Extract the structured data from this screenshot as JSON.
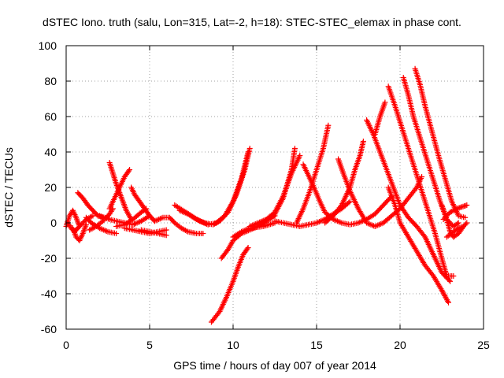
{
  "chart_data": {
    "type": "scatter",
    "title": "dSTEC Iono. truth (salu, Lon=315, Lat=-2, h=18): STEC-STEC_elemax in phase cont.",
    "xlabel": "GPS time / hours of day 007 of year 2014",
    "ylabel": "dSTEC  / TECUs",
    "xlim": [
      0,
      25
    ],
    "ylim": [
      -60,
      100
    ],
    "xticks": [
      0,
      5,
      10,
      15,
      20,
      25
    ],
    "yticks": [
      -60,
      -40,
      -20,
      0,
      20,
      40,
      60,
      80,
      100
    ],
    "grid": true,
    "marker": "+",
    "color": "#ff0000",
    "tracks": [
      [
        [
          0.0,
          -2
        ],
        [
          0.2,
          4
        ],
        [
          0.4,
          7
        ],
        [
          0.6,
          3
        ],
        [
          0.8,
          -2
        ]
      ],
      [
        [
          0.4,
          -3
        ],
        [
          0.6,
          -8
        ],
        [
          0.8,
          -10
        ],
        [
          1.0,
          -6
        ],
        [
          1.2,
          -1
        ]
      ],
      [
        [
          0.1,
          0
        ],
        [
          0.3,
          -3
        ],
        [
          0.5,
          -5
        ],
        [
          0.8,
          -2
        ],
        [
          1.2,
          2
        ],
        [
          1.6,
          4
        ]
      ],
      [
        [
          0.7,
          17
        ],
        [
          1.0,
          14
        ],
        [
          1.3,
          10
        ],
        [
          1.6,
          7
        ],
        [
          1.9,
          4
        ],
        [
          2.2,
          3
        ]
      ],
      [
        [
          1.2,
          3
        ],
        [
          1.5,
          0
        ],
        [
          2.0,
          -3
        ],
        [
          2.5,
          -5
        ],
        [
          3.0,
          -6
        ]
      ],
      [
        [
          1.4,
          -4
        ],
        [
          1.8,
          -2
        ],
        [
          2.2,
          1
        ],
        [
          2.6,
          5
        ],
        [
          2.8,
          8
        ]
      ],
      [
        [
          2.6,
          34
        ],
        [
          2.8,
          28
        ],
        [
          3.0,
          22
        ],
        [
          3.2,
          17
        ],
        [
          3.4,
          12
        ],
        [
          3.6,
          7
        ],
        [
          3.9,
          2
        ]
      ],
      [
        [
          2.6,
          8
        ],
        [
          2.9,
          14
        ],
        [
          3.2,
          20
        ],
        [
          3.5,
          26
        ],
        [
          3.8,
          30
        ]
      ],
      [
        [
          2.0,
          4
        ],
        [
          2.6,
          2
        ],
        [
          3.0,
          1
        ],
        [
          3.5,
          0
        ],
        [
          4.0,
          -1
        ],
        [
          4.5,
          1
        ],
        [
          5.0,
          4
        ]
      ],
      [
        [
          3.0,
          -2
        ],
        [
          3.5,
          -1
        ],
        [
          4.0,
          2
        ],
        [
          4.5,
          6
        ],
        [
          4.8,
          8
        ]
      ],
      [
        [
          3.5,
          -3
        ],
        [
          4.0,
          -4
        ],
        [
          4.5,
          -5
        ],
        [
          5.0,
          -6
        ],
        [
          5.5,
          -5
        ],
        [
          6.0,
          -4
        ]
      ],
      [
        [
          3.9,
          20
        ],
        [
          4.1,
          16
        ],
        [
          4.4,
          12
        ],
        [
          4.7,
          8
        ],
        [
          5.0,
          4
        ],
        [
          5.3,
          1
        ]
      ],
      [
        [
          5.3,
          1
        ],
        [
          5.8,
          3
        ],
        [
          6.2,
          3
        ],
        [
          6.5,
          0
        ],
        [
          6.9,
          -3
        ],
        [
          7.3,
          -5
        ],
        [
          7.8,
          -6
        ],
        [
          8.2,
          -6
        ]
      ],
      [
        [
          4.5,
          -4
        ],
        [
          5.0,
          -5
        ],
        [
          5.5,
          -6
        ],
        [
          6.0,
          -7
        ]
      ],
      [
        [
          6.5,
          10
        ],
        [
          7.0,
          7
        ],
        [
          7.5,
          4
        ],
        [
          8.0,
          1
        ],
        [
          8.5,
          -1
        ],
        [
          9.0,
          0
        ],
        [
          9.5,
          4
        ],
        [
          10.0,
          12
        ],
        [
          10.5,
          25
        ],
        [
          10.9,
          40
        ]
      ],
      [
        [
          6.8,
          7
        ],
        [
          7.3,
          5
        ],
        [
          7.8,
          2
        ],
        [
          8.3,
          0
        ],
        [
          8.8,
          -1
        ],
        [
          9.2,
          1
        ],
        [
          9.7,
          6
        ],
        [
          10.2,
          16
        ],
        [
          10.7,
          30
        ],
        [
          11.0,
          42
        ]
      ],
      [
        [
          8.7,
          -56
        ],
        [
          9.2,
          -50
        ],
        [
          9.6,
          -42
        ],
        [
          10.0,
          -33
        ],
        [
          10.3,
          -25
        ],
        [
          10.6,
          -18
        ],
        [
          10.9,
          -14
        ]
      ],
      [
        [
          9.3,
          -20
        ],
        [
          9.7,
          -15
        ],
        [
          10.0,
          -10
        ],
        [
          10.5,
          -6
        ],
        [
          11.0,
          -4
        ],
        [
          11.5,
          -2
        ],
        [
          12.0,
          1
        ],
        [
          12.5,
          4
        ]
      ],
      [
        [
          10.0,
          -8
        ],
        [
          10.5,
          -5
        ],
        [
          11.0,
          -3
        ],
        [
          11.8,
          -2
        ],
        [
          12.5,
          0
        ]
      ],
      [
        [
          11.0,
          -2
        ],
        [
          11.5,
          0
        ],
        [
          12.0,
          2
        ],
        [
          12.5,
          5
        ],
        [
          13.0,
          14
        ],
        [
          13.5,
          30
        ],
        [
          13.7,
          42
        ]
      ],
      [
        [
          11.5,
          -1
        ],
        [
          12.0,
          2
        ],
        [
          12.5,
          6
        ],
        [
          13.0,
          15
        ],
        [
          13.5,
          28
        ],
        [
          14.0,
          38
        ]
      ],
      [
        [
          12.5,
          1
        ],
        [
          13.0,
          0
        ],
        [
          13.5,
          -1
        ],
        [
          14.0,
          -2
        ],
        [
          14.5,
          -1
        ],
        [
          15.0,
          0
        ],
        [
          15.5,
          2
        ],
        [
          16.0,
          5
        ],
        [
          16.5,
          8
        ],
        [
          17.0,
          12
        ]
      ],
      [
        [
          13.8,
          0
        ],
        [
          14.2,
          8
        ],
        [
          14.6,
          18
        ],
        [
          15.0,
          30
        ],
        [
          15.4,
          42
        ],
        [
          15.7,
          55
        ]
      ],
      [
        [
          14.2,
          33
        ],
        [
          14.5,
          27
        ],
        [
          14.8,
          21
        ],
        [
          15.2,
          12
        ],
        [
          15.5,
          6
        ],
        [
          16.0,
          2
        ],
        [
          16.5,
          0
        ],
        [
          17.0,
          -1
        ],
        [
          17.5,
          0
        ],
        [
          18.0,
          2
        ],
        [
          18.5,
          5
        ],
        [
          19.0,
          10
        ],
        [
          19.5,
          15
        ]
      ],
      [
        [
          15.5,
          0
        ],
        [
          16.0,
          4
        ],
        [
          16.5,
          10
        ],
        [
          17.0,
          20
        ],
        [
          17.3,
          30
        ],
        [
          17.6,
          38
        ],
        [
          17.8,
          46
        ]
      ],
      [
        [
          16.3,
          36
        ],
        [
          16.6,
          28
        ],
        [
          17.0,
          18
        ],
        [
          17.5,
          8
        ],
        [
          18.0,
          0
        ],
        [
          18.5,
          -2
        ],
        [
          19.0,
          0
        ],
        [
          19.5,
          4
        ],
        [
          20.0,
          8
        ],
        [
          20.5,
          14
        ],
        [
          21.0,
          20
        ],
        [
          21.3,
          26
        ]
      ],
      [
        [
          18.0,
          58
        ],
        [
          18.4,
          50
        ],
        [
          18.8,
          40
        ],
        [
          19.2,
          30
        ],
        [
          19.6,
          20
        ],
        [
          20.0,
          10
        ],
        [
          20.5,
          3
        ],
        [
          21.0,
          -2
        ],
        [
          21.5,
          -8
        ],
        [
          22.0,
          -18
        ],
        [
          22.5,
          -28
        ],
        [
          23.0,
          -33
        ]
      ],
      [
        [
          18.5,
          50
        ],
        [
          18.8,
          60
        ],
        [
          19.1,
          68
        ]
      ],
      [
        [
          19.3,
          77
        ],
        [
          19.7,
          66
        ],
        [
          20.1,
          54
        ],
        [
          20.5,
          42
        ],
        [
          20.9,
          30
        ],
        [
          21.3,
          18
        ],
        [
          21.7,
          6
        ],
        [
          22.1,
          -6
        ],
        [
          22.5,
          -20
        ],
        [
          22.8,
          -30
        ],
        [
          23.2,
          -30
        ]
      ],
      [
        [
          20.2,
          82
        ],
        [
          20.5,
          72
        ],
        [
          20.8,
          60
        ],
        [
          21.2,
          48
        ],
        [
          21.6,
          36
        ],
        [
          22.0,
          24
        ],
        [
          22.4,
          12
        ],
        [
          22.8,
          2
        ],
        [
          23.2,
          -2
        ],
        [
          23.5,
          0
        ]
      ],
      [
        [
          20.9,
          87
        ],
        [
          21.2,
          78
        ],
        [
          21.5,
          66
        ],
        [
          21.9,
          52
        ],
        [
          22.3,
          38
        ],
        [
          22.7,
          25
        ],
        [
          23.1,
          12
        ],
        [
          23.5,
          4
        ],
        [
          23.9,
          3
        ]
      ],
      [
        [
          19.3,
          20
        ],
        [
          19.7,
          10
        ],
        [
          20.0,
          0
        ],
        [
          20.5,
          -8
        ],
        [
          21.0,
          -16
        ],
        [
          21.5,
          -24
        ],
        [
          22.0,
          -30
        ],
        [
          22.5,
          -38
        ],
        [
          22.9,
          -45
        ]
      ],
      [
        [
          22.5,
          10
        ],
        [
          22.8,
          2
        ],
        [
          23.0,
          -5
        ],
        [
          23.2,
          -8
        ],
        [
          23.5,
          -6
        ],
        [
          23.8,
          -2
        ],
        [
          24.0,
          0
        ]
      ],
      [
        [
          22.6,
          2
        ],
        [
          23.0,
          6
        ],
        [
          23.4,
          8
        ],
        [
          23.7,
          9
        ],
        [
          24.0,
          10
        ]
      ],
      [
        [
          22.8,
          -8
        ],
        [
          23.2,
          -5
        ],
        [
          23.5,
          -3
        ],
        [
          23.8,
          -2
        ]
      ]
    ]
  }
}
